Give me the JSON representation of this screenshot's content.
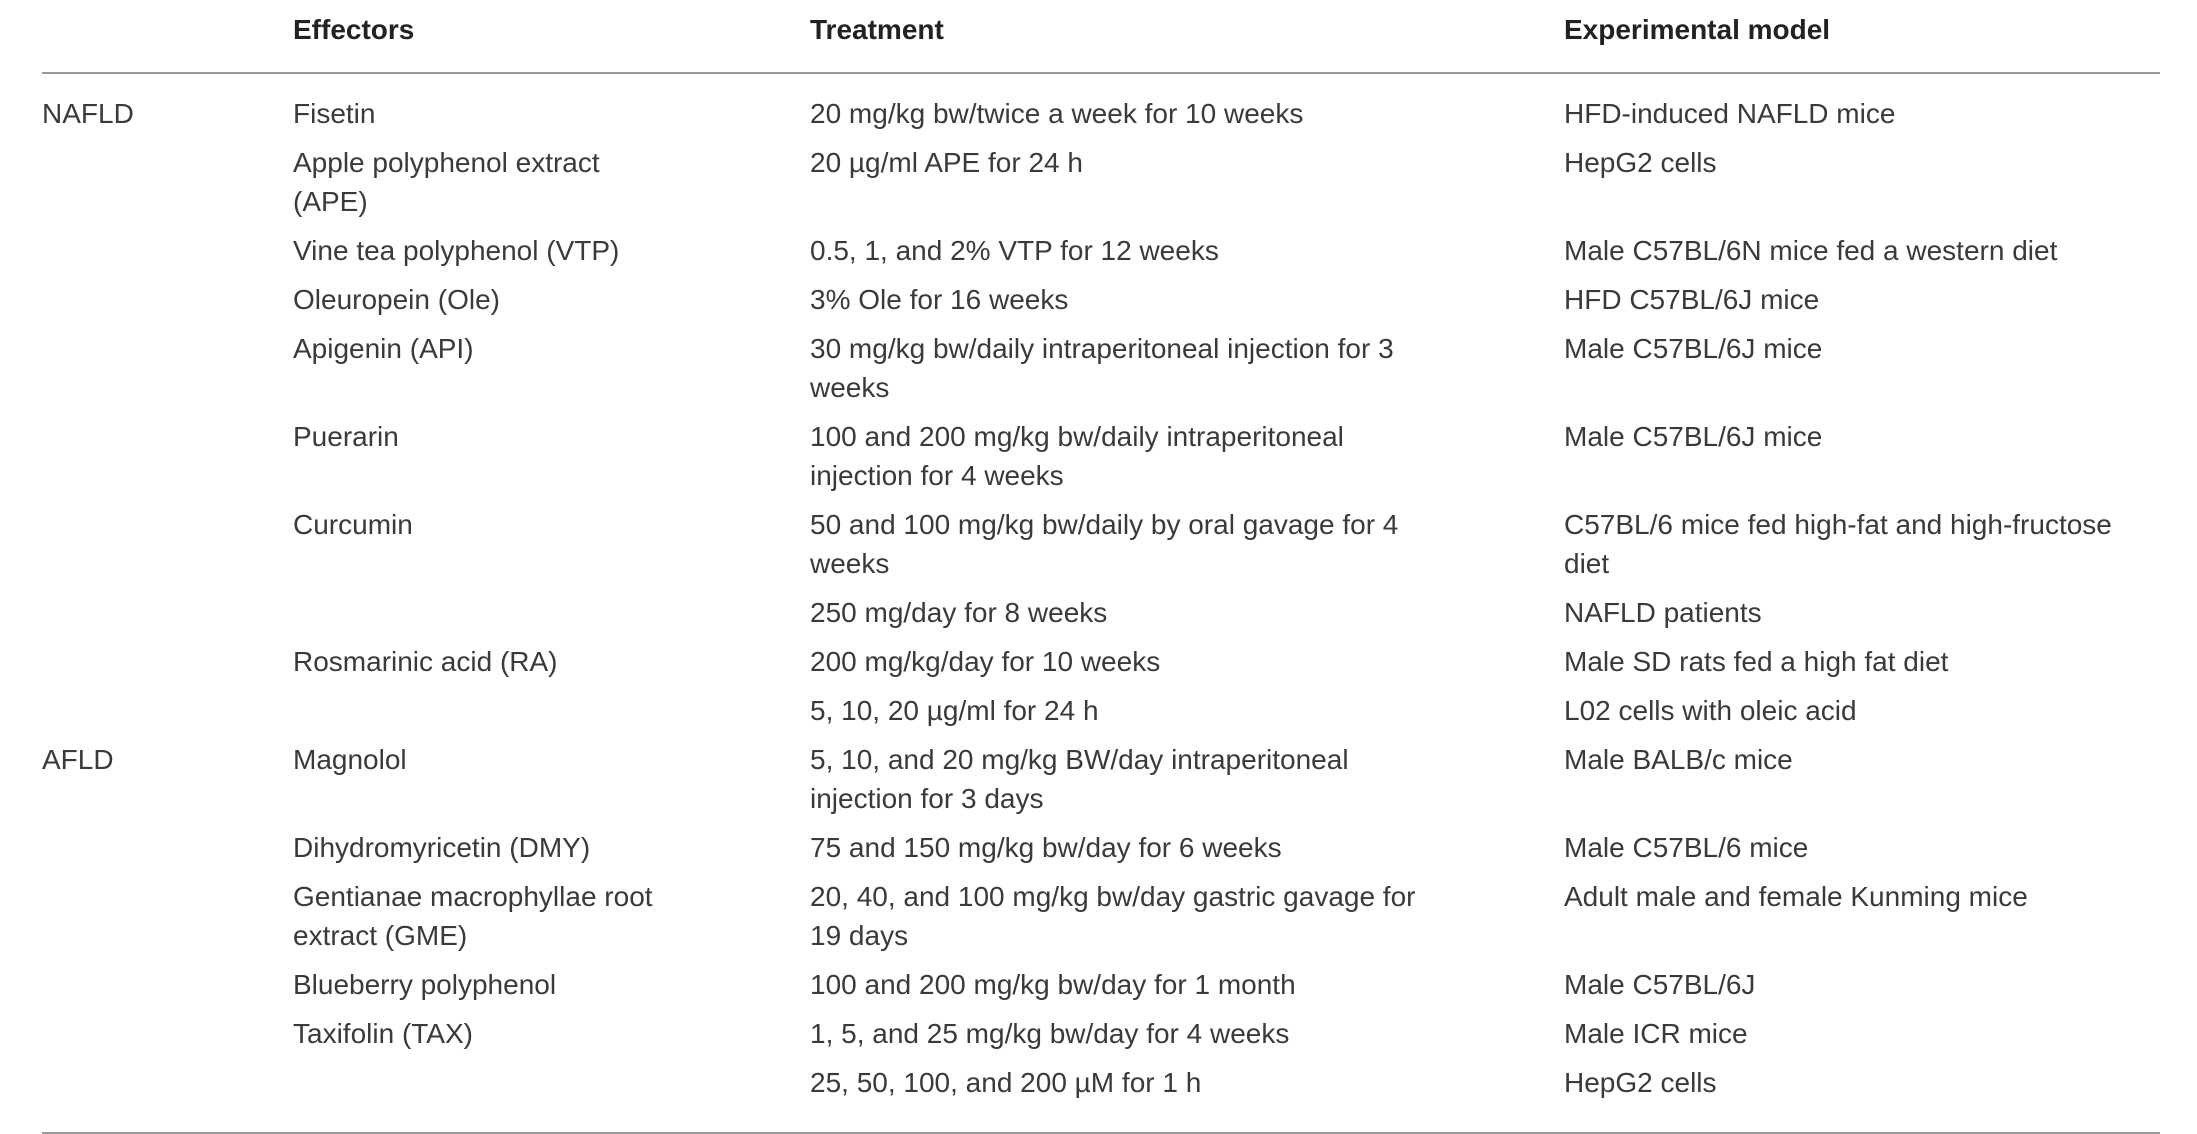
{
  "header": {
    "effectors": "Effectors",
    "treatment": "Treatment",
    "model": "Experimental model"
  },
  "rows": [
    {
      "group": "NAFLD",
      "effector": "Fisetin",
      "treatment": "20 mg/kg bw/twice a week for 10 weeks",
      "model": "HFD-induced NAFLD mice"
    },
    {
      "group": "",
      "effector": "Apple polyphenol extract (APE)",
      "treatment": "20 µg/ml APE for 24 h",
      "model": "HepG2 cells"
    },
    {
      "group": "",
      "effector": "Vine tea polyphenol (VTP)",
      "treatment": "0.5, 1, and 2% VTP for 12 weeks",
      "model": "Male C57BL/6N mice fed a western diet"
    },
    {
      "group": "",
      "effector": "Oleuropein (Ole)",
      "treatment": "3% Ole for 16 weeks",
      "model": "HFD C57BL/6J mice"
    },
    {
      "group": "",
      "effector": "Apigenin (API)",
      "treatment": "30 mg/kg bw/daily intraperitoneal injection for 3 weeks",
      "model": "Male C57BL/6J mice"
    },
    {
      "group": "",
      "effector": "Puerarin",
      "treatment": "100 and 200 mg/kg bw/daily intraperitoneal injection for 4 weeks",
      "model": "Male C57BL/6J mice"
    },
    {
      "group": "",
      "effector": "Curcumin",
      "treatment": "50 and 100 mg/kg bw/daily by oral gavage for 4 weeks",
      "model": "C57BL/6 mice fed high-fat and high-fructose diet"
    },
    {
      "group": "",
      "effector": "",
      "treatment": "250 mg/day for 8 weeks",
      "model": "NAFLD patients"
    },
    {
      "group": "",
      "effector": "Rosmarinic acid (RA)",
      "treatment": "200 mg/kg/day for 10 weeks",
      "model": "Male SD rats fed a high fat diet"
    },
    {
      "group": "",
      "effector": "",
      "treatment": "5, 10, 20 µg/ml for 24 h",
      "model": "L02 cells with oleic acid"
    },
    {
      "group": "AFLD",
      "effector": "Magnolol",
      "treatment": "5, 10, and 20 mg/kg BW/day intraperitoneal injection for 3 days",
      "model": "Male BALB/c mice"
    },
    {
      "group": "",
      "effector": "Dihydromyricetin (DMY)",
      "treatment": "75 and 150 mg/kg bw/day for 6 weeks",
      "model": "Male C57BL/6 mice"
    },
    {
      "group": "",
      "effector": "Gentianae macrophyllae root extract (GME)",
      "treatment": "20, 40, and 100 mg/kg bw/day gastric gavage for 19 days",
      "model": "Adult male and female Kunming mice"
    },
    {
      "group": "",
      "effector": "Blueberry polyphenol",
      "treatment": "100 and 200 mg/kg bw/day for 1 month",
      "model": "Male C57BL/6J"
    },
    {
      "group": "",
      "effector": "Taxifolin (TAX)",
      "treatment": "1, 5, and 25 mg/kg bw/day for 4 weeks",
      "model": "Male ICR mice"
    },
    {
      "group": "",
      "effector": "",
      "treatment": "25, 50, 100, and 200 µM for 1 h",
      "model": "HepG2 cells"
    }
  ]
}
